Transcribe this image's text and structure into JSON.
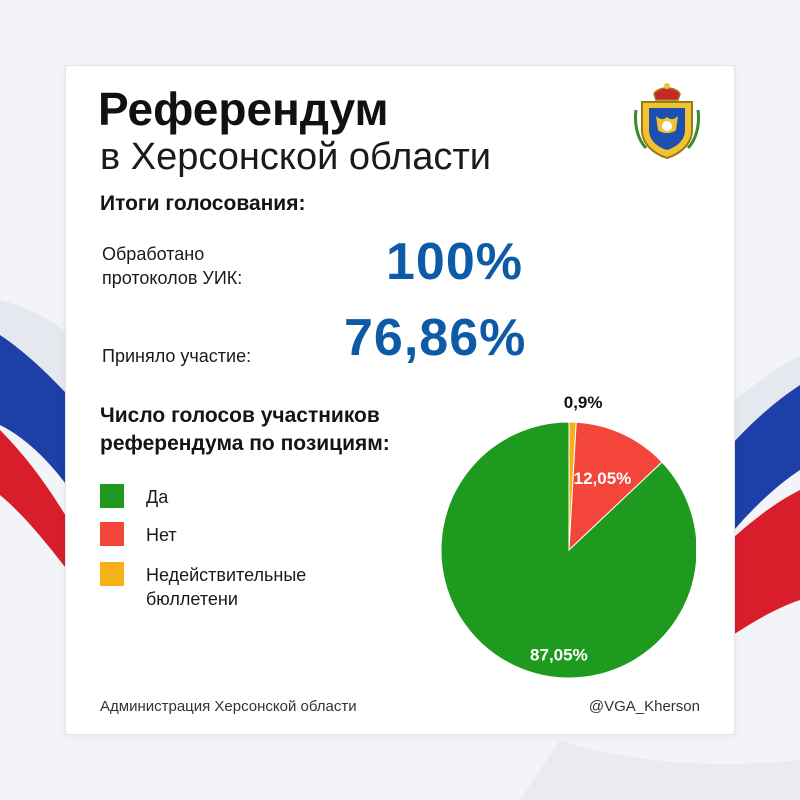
{
  "header": {
    "title": "Референдум",
    "subtitle": "в Херсонской области"
  },
  "results": {
    "heading": "Итоги голосования:",
    "processed_label_line1": "Обработано",
    "processed_label_line2": "протоколов УИК:",
    "processed_value": "100%",
    "turnout_label": "Приняло участие:",
    "turnout_value": "76,86%"
  },
  "chart_heading_line1": "Число голосов участников",
  "chart_heading_line2": "референдума по позициям:",
  "legend": [
    {
      "label": "Да",
      "color": "#1e9b1e"
    },
    {
      "label": "Нет",
      "color": "#f4453a"
    },
    {
      "label_line1": "Недействительные",
      "label_line2": "бюллетени",
      "color": "#f4b11a"
    }
  ],
  "chart_data": {
    "type": "pie",
    "slices": [
      {
        "category": "Да",
        "value": 87.05,
        "label": "87,05%",
        "color": "#1e9b1e"
      },
      {
        "category": "Нет",
        "value": 12.05,
        "label": "12,05%",
        "color": "#f4453a"
      },
      {
        "category": "Недействительные бюллетени",
        "value": 0.9,
        "label": "0,9%",
        "color": "#f4b11a"
      }
    ]
  },
  "footer": {
    "source": "Администрация Херсонской области",
    "handle": "@VGA_Kherson"
  },
  "colors": {
    "accent_blue": "#0d5aa6",
    "flag_white": "#ffffff",
    "flag_blue": "#1c3fa8",
    "flag_red": "#d81e2b"
  },
  "icons": {
    "emblem": "kherson-coat-of-arms-icon"
  }
}
